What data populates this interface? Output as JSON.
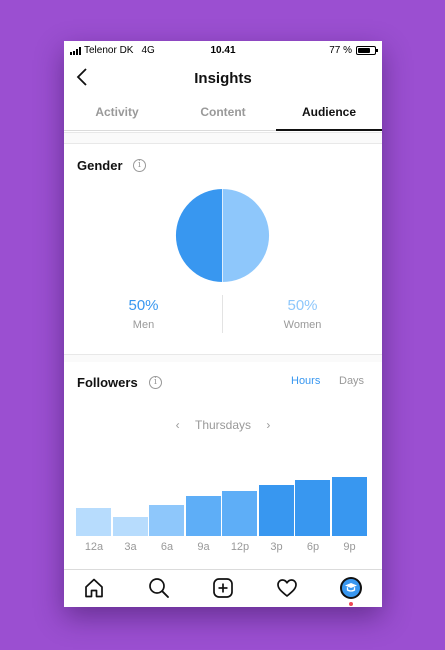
{
  "status": {
    "carrier": "Telenor DK",
    "network": "4G",
    "time": "10.41",
    "battery": "77 %",
    "battery_level": 0.77
  },
  "header": {
    "title": "Insights",
    "back_icon": "chevron-left-icon"
  },
  "tabs": [
    {
      "label": "Activity",
      "active": false
    },
    {
      "label": "Content",
      "active": false
    },
    {
      "label": "Audience",
      "active": true
    }
  ],
  "gender": {
    "title": "Gender",
    "info_icon": "info-icon",
    "men": {
      "percent": "50%",
      "label": "Men",
      "color": "#3897f0"
    },
    "women": {
      "percent": "50%",
      "label": "Women",
      "color": "#8ec7fb"
    }
  },
  "followers": {
    "title": "Followers",
    "toggle": {
      "hours": "Hours",
      "days": "Days",
      "active": "hours"
    },
    "day_nav": {
      "prev": "‹",
      "label": "Thursdays",
      "next": "›"
    }
  },
  "chart_data": {
    "type": "bar",
    "title": "",
    "xlabel": "",
    "ylabel": "",
    "categories": [
      "12a",
      "3a",
      "6a",
      "9a",
      "12p",
      "3p",
      "6p",
      "9p"
    ],
    "values": [
      48,
      32,
      52,
      68,
      75,
      86,
      95,
      100
    ],
    "ylim": [
      0,
      100
    ],
    "colors": [
      "#b7dcfd",
      "#b7dcfd",
      "#8ec7fb",
      "#5eaef7",
      "#5eaef7",
      "#3897f0",
      "#3897f0",
      "#3897f0"
    ]
  },
  "tabbar": {
    "icons": [
      "home-icon",
      "search-icon",
      "new-post-icon",
      "activity-heart-icon",
      "profile-avatar-icon"
    ],
    "accent": "#3897f0"
  }
}
